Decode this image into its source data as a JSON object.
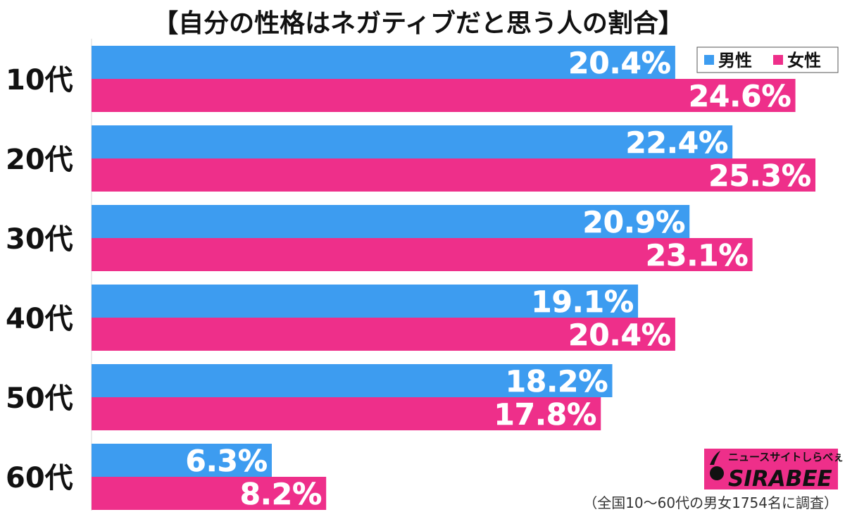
{
  "chart_data": {
    "type": "bar",
    "orientation": "horizontal",
    "title": "【自分の性格はネガティブだと思う人の割合】",
    "categories": [
      "10代",
      "20代",
      "30代",
      "40代",
      "50代",
      "60代"
    ],
    "series": [
      {
        "name": "男性",
        "color": "#3d9cf0",
        "values": [
          20.4,
          22.4,
          20.9,
          19.1,
          18.2,
          6.3
        ],
        "labels": [
          "20.4%",
          "22.4%",
          "20.9%",
          "19.1%",
          "18.2%",
          "6.3%"
        ]
      },
      {
        "name": "女性",
        "color": "#ee2f8a",
        "values": [
          24.6,
          25.3,
          23.1,
          20.4,
          17.8,
          8.2
        ],
        "labels": [
          "24.6%",
          "25.3%",
          "23.1%",
          "20.4%",
          "17.8%",
          "8.2%"
        ]
      }
    ],
    "xlim": [
      0,
      25.3
    ],
    "grid": false,
    "legend_position": "top-right",
    "note": "（全国10～60代の男女1754名に調査）"
  },
  "logo": {
    "tagline": "ニュースサイトしらべぇ",
    "wordmark": "SIRABEE",
    "color": "#ee2f8a"
  }
}
